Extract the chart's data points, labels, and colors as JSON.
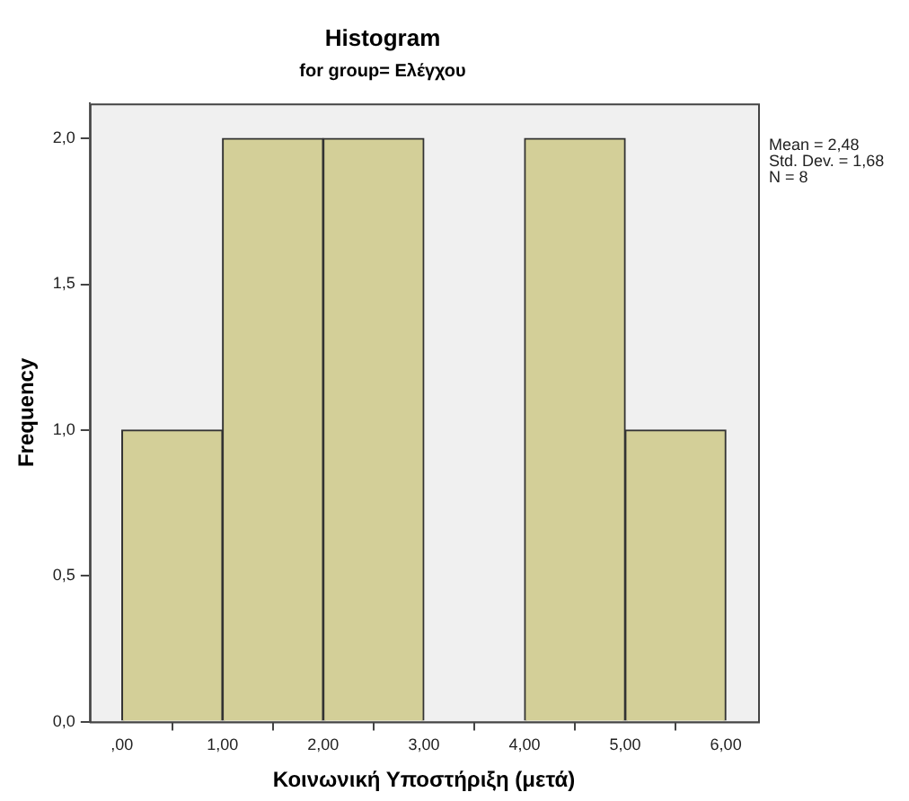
{
  "chart_data": {
    "type": "histogram",
    "title": "Histogram",
    "subtitle": "for group= Ελέγχου",
    "xlabel": "Κοινωνική Υποστήριξη (μετά)",
    "ylabel": "Frequency",
    "bins": [
      0,
      1,
      2,
      3,
      4,
      5,
      6
    ],
    "values": [
      1,
      2,
      2,
      0,
      2,
      1
    ],
    "color": "#d3cf98",
    "xlim": [
      -0.32,
      6.32
    ],
    "xticks": [
      {
        "value": 0,
        "label": ",00"
      },
      {
        "value": 1,
        "label": "1,00"
      },
      {
        "value": 2,
        "label": "2,00"
      },
      {
        "value": 3,
        "label": "3,00"
      },
      {
        "value": 4,
        "label": "4,00"
      },
      {
        "value": 5,
        "label": "5,00"
      },
      {
        "value": 6,
        "label": "6,00"
      }
    ],
    "ylim": [
      0,
      2.12
    ],
    "yticks": [
      {
        "value": 0,
        "label": "0,0"
      },
      {
        "value": 0.5,
        "label": "0,5"
      },
      {
        "value": 1,
        "label": "1,0"
      },
      {
        "value": 1.5,
        "label": "1,5"
      },
      {
        "value": 2,
        "label": "2,0"
      }
    ],
    "annotations": [
      "Mean = 2,48",
      "Std. Dev. = 1,68",
      "N = 8"
    ],
    "grid": false,
    "legend": false
  }
}
